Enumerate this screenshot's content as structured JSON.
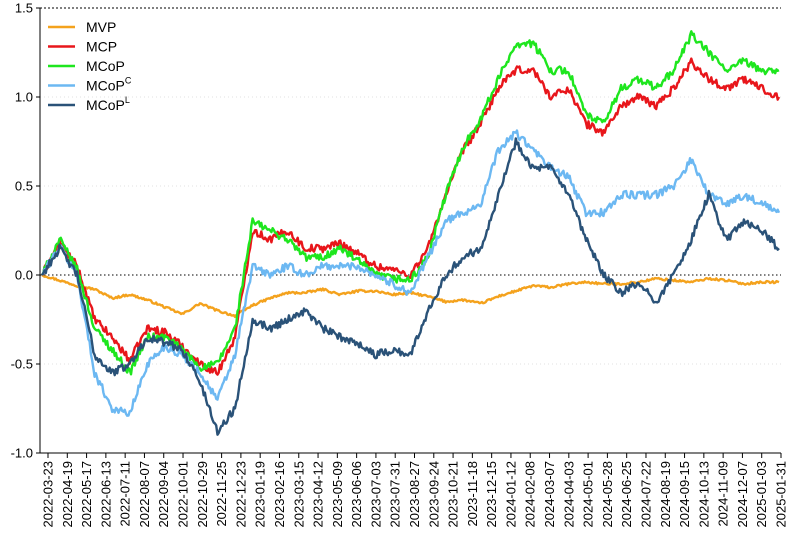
{
  "chart_data": {
    "type": "line",
    "title": "",
    "xlabel": "",
    "ylabel": "",
    "ylim": [
      -1.0,
      1.5
    ],
    "yticks": [
      "-1.0",
      "-0.5",
      "0.0",
      "0.5",
      "1.0",
      "1.5"
    ],
    "xticks": [
      "2022-03-23",
      "2022-04-19",
      "2022-05-17",
      "2022-06-13",
      "2022-07-11",
      "2022-08-07",
      "2022-09-04",
      "2022-10-01",
      "2022-10-29",
      "2022-11-25",
      "2022-12-23",
      "2023-01-19",
      "2023-02-16",
      "2023-03-15",
      "2023-04-12",
      "2023-05-09",
      "2023-06-06",
      "2023-07-03",
      "2023-07-31",
      "2023-08-27",
      "2023-09-24",
      "2023-10-21",
      "2023-11-18",
      "2023-12-15",
      "2024-01-12",
      "2024-02-08",
      "2024-03-07",
      "2024-04-03",
      "2024-05-01",
      "2024-05-28",
      "2024-06-25",
      "2024-07-22",
      "2024-08-19",
      "2024-09-15",
      "2024-10-13",
      "2024-11-09",
      "2024-12-07",
      "2025-01-03",
      "2025-01-31"
    ],
    "zero_line": true,
    "legend_position": "top-left",
    "series": [
      {
        "name": "MVP",
        "color": "#f4a21d",
        "legend_label": "MVP",
        "legend_sup": "",
        "values": [
          -0.0,
          -0.03,
          -0.06,
          -0.08,
          -0.13,
          -0.11,
          -0.14,
          -0.18,
          -0.22,
          -0.16,
          -0.2,
          -0.23,
          -0.17,
          -0.13,
          -0.1,
          -0.1,
          -0.08,
          -0.11,
          -0.09,
          -0.09,
          -0.11,
          -0.1,
          -0.12,
          -0.15,
          -0.14,
          -0.16,
          -0.12,
          -0.09,
          -0.06,
          -0.07,
          -0.05,
          -0.04,
          -0.05,
          -0.05,
          -0.04,
          -0.02,
          -0.03,
          -0.04,
          -0.02,
          -0.03,
          -0.05,
          -0.04,
          -0.04
        ]
      },
      {
        "name": "MCP",
        "color": "#e8161b",
        "legend_label": "MCP",
        "legend_sup": "",
        "values": [
          0.0,
          0.18,
          0.05,
          -0.25,
          -0.35,
          -0.48,
          -0.3,
          -0.32,
          -0.4,
          -0.5,
          -0.55,
          -0.35,
          0.25,
          0.2,
          0.25,
          0.15,
          0.15,
          0.18,
          0.12,
          0.05,
          0.03,
          0.0,
          0.15,
          0.45,
          0.7,
          0.85,
          1.05,
          1.15,
          1.15,
          1.0,
          1.05,
          0.85,
          0.8,
          0.95,
          1.0,
          0.95,
          1.05,
          1.2,
          1.1,
          1.05,
          1.1,
          1.05,
          1.0
        ]
      },
      {
        "name": "MCoP",
        "color": "#1ee61e",
        "legend_label": "MCoP",
        "legend_sup": "",
        "values": [
          0.0,
          0.2,
          0.03,
          -0.3,
          -0.42,
          -0.55,
          -0.35,
          -0.35,
          -0.42,
          -0.52,
          -0.5,
          -0.3,
          0.3,
          0.25,
          0.2,
          0.1,
          0.1,
          0.15,
          0.08,
          0.0,
          -0.02,
          -0.03,
          0.1,
          0.45,
          0.72,
          0.88,
          1.1,
          1.3,
          1.3,
          1.15,
          1.15,
          0.9,
          0.85,
          1.05,
          1.1,
          1.05,
          1.15,
          1.35,
          1.25,
          1.15,
          1.2,
          1.15,
          1.15
        ]
      },
      {
        "name": "MCoPC",
        "color": "#6cb8f2",
        "legend_label": "MCoP",
        "legend_sup": "C",
        "values": [
          0.0,
          0.16,
          0.0,
          -0.55,
          -0.75,
          -0.78,
          -0.5,
          -0.4,
          -0.45,
          -0.55,
          -0.7,
          -0.45,
          0.05,
          0.0,
          0.05,
          0.0,
          0.05,
          0.05,
          0.05,
          0.0,
          -0.05,
          -0.1,
          0.1,
          0.3,
          0.35,
          0.4,
          0.7,
          0.8,
          0.7,
          0.6,
          0.55,
          0.35,
          0.35,
          0.45,
          0.45,
          0.45,
          0.5,
          0.65,
          0.45,
          0.4,
          0.45,
          0.4,
          0.35
        ]
      },
      {
        "name": "MCoPL",
        "color": "#2a5278",
        "legend_label": "MCoP",
        "legend_sup": "L",
        "values": [
          0.0,
          0.15,
          0.0,
          -0.45,
          -0.55,
          -0.5,
          -0.35,
          -0.38,
          -0.42,
          -0.6,
          -0.88,
          -0.75,
          -0.25,
          -0.3,
          -0.25,
          -0.2,
          -0.3,
          -0.35,
          -0.38,
          -0.45,
          -0.42,
          -0.45,
          -0.2,
          0.0,
          0.1,
          0.15,
          0.45,
          0.75,
          0.6,
          0.6,
          0.45,
          0.2,
          0.0,
          -0.1,
          -0.05,
          -0.15,
          0.0,
          0.2,
          0.45,
          0.2,
          0.3,
          0.25,
          0.15
        ]
      }
    ]
  }
}
